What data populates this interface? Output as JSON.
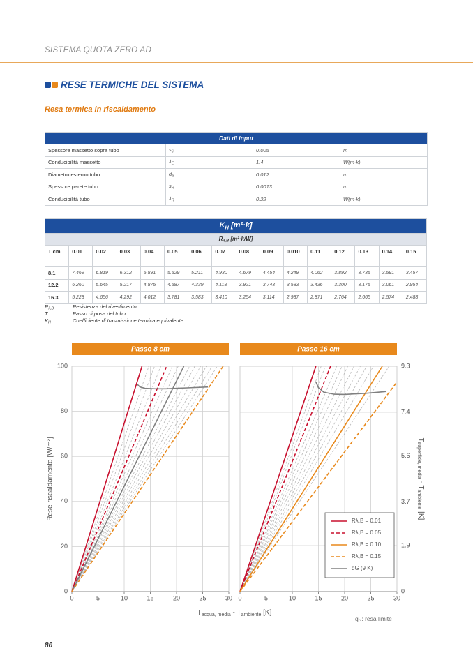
{
  "header": "SISTEMA QUOTA ZERO AD",
  "section": {
    "title": "RESE TERMICHE DEL SISTEMA",
    "subtitle": "Resa termica in riscaldamento"
  },
  "input_table": {
    "title": "Dati di input",
    "rows": [
      [
        "Spessore massetto sopra tubo",
        [
          "s",
          "ü"
        ],
        "0.005",
        "m"
      ],
      [
        "Conducibilità massetto",
        [
          "λ",
          "E"
        ],
        "1.4",
        "W(m·k)"
      ],
      [
        "Diametro esterno tubo",
        [
          "d",
          "a"
        ],
        "0.012",
        "m"
      ],
      [
        "Spessore parete tubo",
        [
          "s",
          "R"
        ],
        "0.0013",
        "m"
      ],
      [
        "Conducibilità tubo",
        [
          "λ",
          "R"
        ],
        "0.22",
        "W(m·k)"
      ]
    ]
  },
  "k_table": {
    "title": [
      "K",
      "H",
      " [m²·k]"
    ],
    "subtitle": [
      "R",
      "λ,B",
      " [m²·k/W]"
    ],
    "header": [
      "T cm",
      "0.01",
      "0.02",
      "0.03",
      "0.04",
      "0.05",
      "0.06",
      "0.07",
      "0.08",
      "0.09",
      "0.010",
      "0.11",
      "0.12",
      "0.13",
      "0.14",
      "0.15"
    ],
    "rows": [
      [
        "8.1",
        "7.469",
        "6.819",
        "6.312",
        "5.891",
        "5.529",
        "5.211",
        "4.930",
        "4.679",
        "4.454",
        "4.249",
        "4.062",
        "3.892",
        "3.735",
        "3.591",
        "3.457"
      ],
      [
        "12.2",
        "6.260",
        "5.645",
        "5.217",
        "4.875",
        "4.587",
        "4.339",
        "4.118",
        "3.921",
        "3.743",
        "3.583",
        "3.436",
        "3.300",
        "3.175",
        "3.061",
        "2.954"
      ],
      [
        "16.3",
        "5.228",
        "4.656",
        "4.292",
        "4.012",
        "3.781",
        "3.583",
        "3.410",
        "3.254",
        "3.114",
        "2.987",
        "2.871",
        "2.764",
        "2.665",
        "2.574",
        "2.488"
      ]
    ]
  },
  "notes": [
    [
      [
        "R",
        "λ,B",
        ":"
      ],
      "Resistenza del rivestimento"
    ],
    [
      [
        "T:"
      ],
      "Passo di posa del tubo"
    ],
    [
      [
        "K",
        "H",
        ":"
      ],
      "Coefficiente di trasmissione termica equivalente"
    ]
  ],
  "chart_data": [
    {
      "type": "line",
      "title": "Passo 8 cm",
      "ylabel": "Rese riscaldamento [W/m²]",
      "xlabel": [
        "T",
        "acqua, media",
        " - T",
        "ambiente",
        " [K]"
      ],
      "xlim": [
        0,
        30
      ],
      "xticks": [
        0,
        5,
        10,
        15,
        20,
        25,
        30
      ],
      "ylim": [
        0,
        100
      ],
      "yticks": [
        0,
        20,
        40,
        60,
        80,
        100
      ],
      "grid": true,
      "series": [
        {
          "color": "#b8b8b8",
          "dash": true,
          "x": [
            0,
            14.7
          ],
          "values": [
            0,
            100
          ]
        },
        {
          "color": "#b8b8b8",
          "dash": true,
          "x": [
            0,
            15.8
          ],
          "values": [
            0,
            100
          ]
        },
        {
          "color": "#b8b8b8",
          "dash": true,
          "x": [
            0,
            17.0
          ],
          "values": [
            0,
            100
          ]
        },
        {
          "color": "#b8b8b8",
          "dash": true,
          "x": [
            0,
            19.2
          ],
          "values": [
            0,
            100
          ]
        },
        {
          "color": "#b8b8b8",
          "dash": true,
          "x": [
            0,
            20.3
          ],
          "values": [
            0,
            100
          ]
        },
        {
          "color": "#b8b8b8",
          "dash": true,
          "x": [
            0,
            22.5
          ],
          "values": [
            0,
            100
          ]
        },
        {
          "color": "#b8b8b8",
          "dash": true,
          "x": [
            0,
            23.5
          ],
          "values": [
            0,
            100
          ]
        },
        {
          "color": "#b8b8b8",
          "dash": true,
          "x": [
            0,
            24.6
          ],
          "values": [
            0,
            100
          ]
        },
        {
          "color": "#b8b8b8",
          "dash": true,
          "x": [
            0,
            25.7
          ],
          "values": [
            0,
            100
          ]
        },
        {
          "color": "#b8b8b8",
          "dash": true,
          "x": [
            0,
            26.8
          ],
          "values": [
            0,
            100
          ]
        },
        {
          "color": "#b8b8b8",
          "dash": true,
          "x": [
            0,
            27.8
          ],
          "values": [
            0,
            100
          ]
        },
        {
          "color": "#c8102e",
          "x": [
            0,
            13.4
          ],
          "values": [
            0,
            100
          ]
        },
        {
          "color": "#c8102e",
          "dash": true,
          "x": [
            0,
            18.1
          ],
          "values": [
            0,
            100
          ]
        },
        {
          "color": "#808080",
          "x": [
            0,
            21.4
          ],
          "values": [
            0,
            100
          ]
        },
        {
          "color": "#e8891c",
          "dash": true,
          "x": [
            0,
            28.9
          ],
          "values": [
            0,
            100
          ]
        },
        {
          "color": "#808080",
          "x": [
            12.5,
            13,
            14,
            16,
            18,
            22,
            26
          ],
          "values": [
            92,
            90.8,
            90.2,
            90,
            90,
            90.4,
            90.8
          ]
        }
      ]
    },
    {
      "type": "line",
      "title": "Passo 16 cm",
      "y2label": [
        "T",
        "superficie, media",
        " - T",
        "ambiente",
        " [K]"
      ],
      "xlim": [
        0,
        30
      ],
      "xticks": [
        0,
        5,
        10,
        15,
        20,
        25,
        30
      ],
      "ylim": [
        0,
        100
      ],
      "y2lim": [
        0,
        9.3
      ],
      "y2ticks": [
        0,
        1.9,
        3.7,
        5.6,
        7.4,
        9.3
      ],
      "grid": true,
      "legend": "lower right",
      "series": [
        {
          "color": "#b8b8b8",
          "dash": true,
          "x": [
            0,
            15.5
          ],
          "values": [
            0,
            100
          ]
        },
        {
          "color": "#b8b8b8",
          "dash": true,
          "x": [
            0,
            16.3
          ],
          "values": [
            0,
            100
          ]
        },
        {
          "color": "#b8b8b8",
          "dash": true,
          "x": [
            0,
            18.5
          ],
          "values": [
            0,
            100
          ]
        },
        {
          "color": "#b8b8b8",
          "dash": true,
          "x": [
            0,
            19.5
          ],
          "values": [
            0,
            100
          ]
        },
        {
          "color": "#b8b8b8",
          "dash": true,
          "x": [
            0,
            20.6
          ],
          "values": [
            0,
            100
          ]
        },
        {
          "color": "#b8b8b8",
          "dash": true,
          "x": [
            0,
            21.8
          ],
          "values": [
            0,
            100
          ]
        },
        {
          "color": "#b8b8b8",
          "dash": true,
          "x": [
            0,
            23
          ],
          "values": [
            0,
            100
          ]
        },
        {
          "color": "#b8b8b8",
          "dash": true,
          "x": [
            0,
            24.2
          ],
          "values": [
            0,
            100
          ]
        },
        {
          "color": "#b8b8b8",
          "dash": true,
          "x": [
            0,
            25.5
          ],
          "values": [
            0,
            100
          ]
        },
        {
          "color": "#b8b8b8",
          "dash": true,
          "x": [
            0,
            28.5
          ],
          "values": [
            0,
            100
          ]
        },
        {
          "name": "Rλ,B = 0.01",
          "color": "#c8102e",
          "x": [
            0,
            14.5
          ],
          "values": [
            0,
            100
          ]
        },
        {
          "name": "Rλ,B = 0.05",
          "color": "#c8102e",
          "dash": true,
          "x": [
            0,
            17.3
          ],
          "values": [
            0,
            100
          ]
        },
        {
          "name": "Rλ,B = 0.10",
          "color": "#e8891c",
          "x": [
            0,
            27.2
          ],
          "values": [
            0,
            100
          ]
        },
        {
          "name": "Rλ,B = 0.15",
          "color": "#e8891c",
          "dash": true,
          "x": [
            0,
            30
          ],
          "values": [
            0,
            93
          ]
        },
        {
          "name": "qG (9 K)",
          "color": "#808080",
          "x": [
            14.5,
            15,
            16,
            18,
            20,
            24,
            28
          ],
          "values": [
            93,
            90.5,
            88.5,
            87.6,
            87.5,
            88,
            88.8
          ]
        }
      ]
    }
  ],
  "footnote": [
    "q",
    "G",
    ": resa limite"
  ],
  "page_number": "86"
}
